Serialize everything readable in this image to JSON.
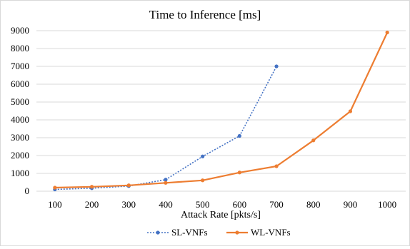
{
  "chart_data": {
    "type": "line",
    "title": "Time to Inference [ms]",
    "xlabel": "Attack Rate [pkts/s]",
    "ylabel": "",
    "categories": [
      "100",
      "200",
      "300",
      "400",
      "500",
      "600",
      "700",
      "800",
      "900",
      "1000"
    ],
    "ylim": [
      0,
      9000
    ],
    "yticks": [
      "0",
      "1000",
      "2000",
      "3000",
      "4000",
      "5000",
      "6000",
      "7000",
      "8000",
      "9000"
    ],
    "grid": "horizontal",
    "legend_position": "bottom",
    "series": [
      {
        "name": "SL-VNFs",
        "color": "#4472c4",
        "style": "dotted",
        "values": [
          100,
          170,
          290,
          650,
          1950,
          3100,
          7000,
          null,
          null,
          null
        ]
      },
      {
        "name": "WL-VNFs",
        "color": "#ed7d31",
        "style": "solid",
        "values": [
          200,
          250,
          330,
          470,
          610,
          1050,
          1400,
          2850,
          4480,
          8900
        ]
      }
    ]
  }
}
